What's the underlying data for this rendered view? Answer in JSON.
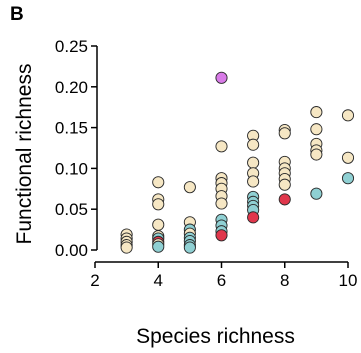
{
  "panel_label": "B",
  "colors": {
    "cream": "#f6e7c4",
    "teal": "#8fd0d3",
    "red": "#e0374c",
    "purple": "#d97be8",
    "outline": "#2b2b2b"
  },
  "chart_data": {
    "type": "scatter",
    "xlabel": "Species richness",
    "ylabel": "Functional richness",
    "xlim": [
      2,
      10
    ],
    "ylim": [
      0,
      0.25
    ],
    "x_ticks": [
      "2",
      "4",
      "6",
      "8",
      "10"
    ],
    "y_ticks": [
      "0.00",
      "0.05",
      "0.10",
      "0.15",
      "0.20",
      "0.25"
    ],
    "grid": false,
    "legend": "none",
    "points": [
      {
        "x": 3,
        "y": 0.019,
        "c": "cream"
      },
      {
        "x": 3,
        "y": 0.014,
        "c": "cream"
      },
      {
        "x": 3,
        "y": 0.01,
        "c": "cream"
      },
      {
        "x": 3,
        "y": 0.006,
        "c": "cream"
      },
      {
        "x": 3,
        "y": 0.003,
        "c": "cream"
      },
      {
        "x": 4,
        "y": 0.083,
        "c": "cream"
      },
      {
        "x": 4,
        "y": 0.062,
        "c": "cream"
      },
      {
        "x": 4,
        "y": 0.056,
        "c": "cream"
      },
      {
        "x": 4,
        "y": 0.031,
        "c": "cream"
      },
      {
        "x": 4,
        "y": 0.017,
        "c": "cream"
      },
      {
        "x": 4,
        "y": 0.014,
        "c": "teal"
      },
      {
        "x": 4,
        "y": 0.01,
        "c": "red"
      },
      {
        "x": 4,
        "y": 0.007,
        "c": "cream"
      },
      {
        "x": 4,
        "y": 0.004,
        "c": "teal"
      },
      {
        "x": 5,
        "y": 0.077,
        "c": "cream"
      },
      {
        "x": 5,
        "y": 0.034,
        "c": "cream"
      },
      {
        "x": 5,
        "y": 0.025,
        "c": "teal"
      },
      {
        "x": 5,
        "y": 0.02,
        "c": "cream"
      },
      {
        "x": 5,
        "y": 0.015,
        "c": "teal"
      },
      {
        "x": 5,
        "y": 0.011,
        "c": "teal"
      },
      {
        "x": 5,
        "y": 0.006,
        "c": "teal"
      },
      {
        "x": 5,
        "y": 0.003,
        "c": "teal"
      },
      {
        "x": 6,
        "y": 0.211,
        "c": "purple"
      },
      {
        "x": 6,
        "y": 0.127,
        "c": "cream"
      },
      {
        "x": 6,
        "y": 0.088,
        "c": "cream"
      },
      {
        "x": 6,
        "y": 0.082,
        "c": "cream"
      },
      {
        "x": 6,
        "y": 0.075,
        "c": "cream"
      },
      {
        "x": 6,
        "y": 0.066,
        "c": "cream"
      },
      {
        "x": 6,
        "y": 0.057,
        "c": "cream"
      },
      {
        "x": 6,
        "y": 0.037,
        "c": "teal"
      },
      {
        "x": 6,
        "y": 0.03,
        "c": "teal"
      },
      {
        "x": 6,
        "y": 0.023,
        "c": "teal"
      },
      {
        "x": 6,
        "y": 0.018,
        "c": "red"
      },
      {
        "x": 7,
        "y": 0.14,
        "c": "cream"
      },
      {
        "x": 7,
        "y": 0.129,
        "c": "cream"
      },
      {
        "x": 7,
        "y": 0.107,
        "c": "cream"
      },
      {
        "x": 7,
        "y": 0.094,
        "c": "cream"
      },
      {
        "x": 7,
        "y": 0.084,
        "c": "cream"
      },
      {
        "x": 7,
        "y": 0.065,
        "c": "teal"
      },
      {
        "x": 7,
        "y": 0.059,
        "c": "teal"
      },
      {
        "x": 7,
        "y": 0.054,
        "c": "teal"
      },
      {
        "x": 7,
        "y": 0.049,
        "c": "teal"
      },
      {
        "x": 7,
        "y": 0.04,
        "c": "red"
      },
      {
        "x": 8,
        "y": 0.147,
        "c": "cream"
      },
      {
        "x": 8,
        "y": 0.143,
        "c": "cream"
      },
      {
        "x": 8,
        "y": 0.108,
        "c": "cream"
      },
      {
        "x": 8,
        "y": 0.1,
        "c": "cream"
      },
      {
        "x": 8,
        "y": 0.094,
        "c": "cream"
      },
      {
        "x": 8,
        "y": 0.087,
        "c": "cream"
      },
      {
        "x": 8,
        "y": 0.08,
        "c": "cream"
      },
      {
        "x": 8,
        "y": 0.062,
        "c": "red"
      },
      {
        "x": 9,
        "y": 0.169,
        "c": "cream"
      },
      {
        "x": 9,
        "y": 0.148,
        "c": "cream"
      },
      {
        "x": 9,
        "y": 0.13,
        "c": "cream"
      },
      {
        "x": 9,
        "y": 0.122,
        "c": "cream"
      },
      {
        "x": 9,
        "y": 0.117,
        "c": "cream"
      },
      {
        "x": 9,
        "y": 0.069,
        "c": "teal"
      },
      {
        "x": 10,
        "y": 0.165,
        "c": "cream"
      },
      {
        "x": 10,
        "y": 0.113,
        "c": "cream"
      },
      {
        "x": 10,
        "y": 0.088,
        "c": "teal"
      }
    ]
  }
}
